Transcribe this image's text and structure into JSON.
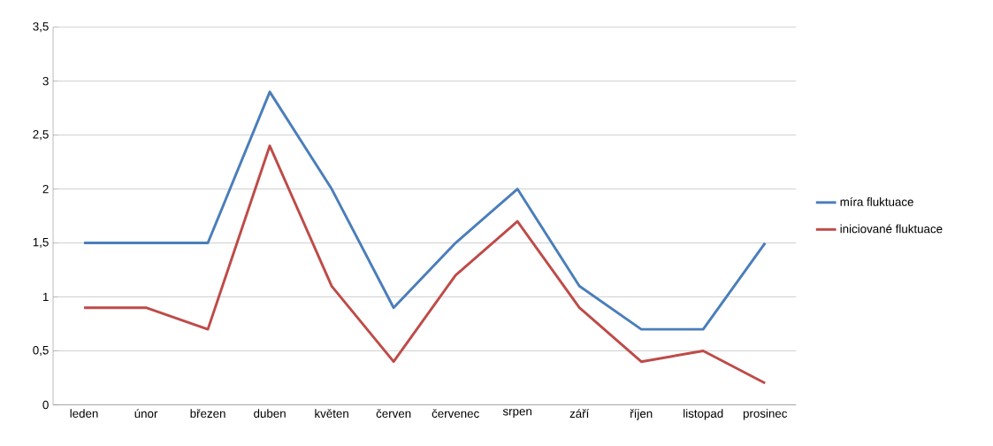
{
  "chart_data": {
    "type": "line",
    "categories": [
      "leden",
      "únor",
      "březen",
      "duben",
      "květen",
      "červen",
      "červenec",
      "srpen",
      "září",
      "říjen",
      "listopad",
      "prosinec"
    ],
    "series": [
      {
        "name": "míra fluktuace",
        "color": "#4a7ebb",
        "values": [
          1.5,
          1.5,
          1.5,
          2.9,
          2.0,
          0.9,
          1.5,
          2.0,
          1.1,
          0.7,
          0.7,
          1.5
        ]
      },
      {
        "name": "iniciované fluktuace",
        "color": "#be4b48",
        "values": [
          0.9,
          0.9,
          0.7,
          2.4,
          1.1,
          0.4,
          1.2,
          1.7,
          0.9,
          0.4,
          0.5,
          0.2
        ]
      }
    ],
    "ylim": [
      0,
      3.5
    ],
    "yticks": [
      0,
      {
        "value": 0.5,
        "label": "0,5"
      },
      1,
      {
        "value": 1.5,
        "label": "1,5"
      },
      2,
      {
        "value": 2.5,
        "label": "2,5"
      },
      3,
      {
        "value": 3.5,
        "label": "3,5"
      }
    ],
    "grid": "y",
    "legend": "right",
    "marker": "none",
    "line_style": "solid"
  }
}
